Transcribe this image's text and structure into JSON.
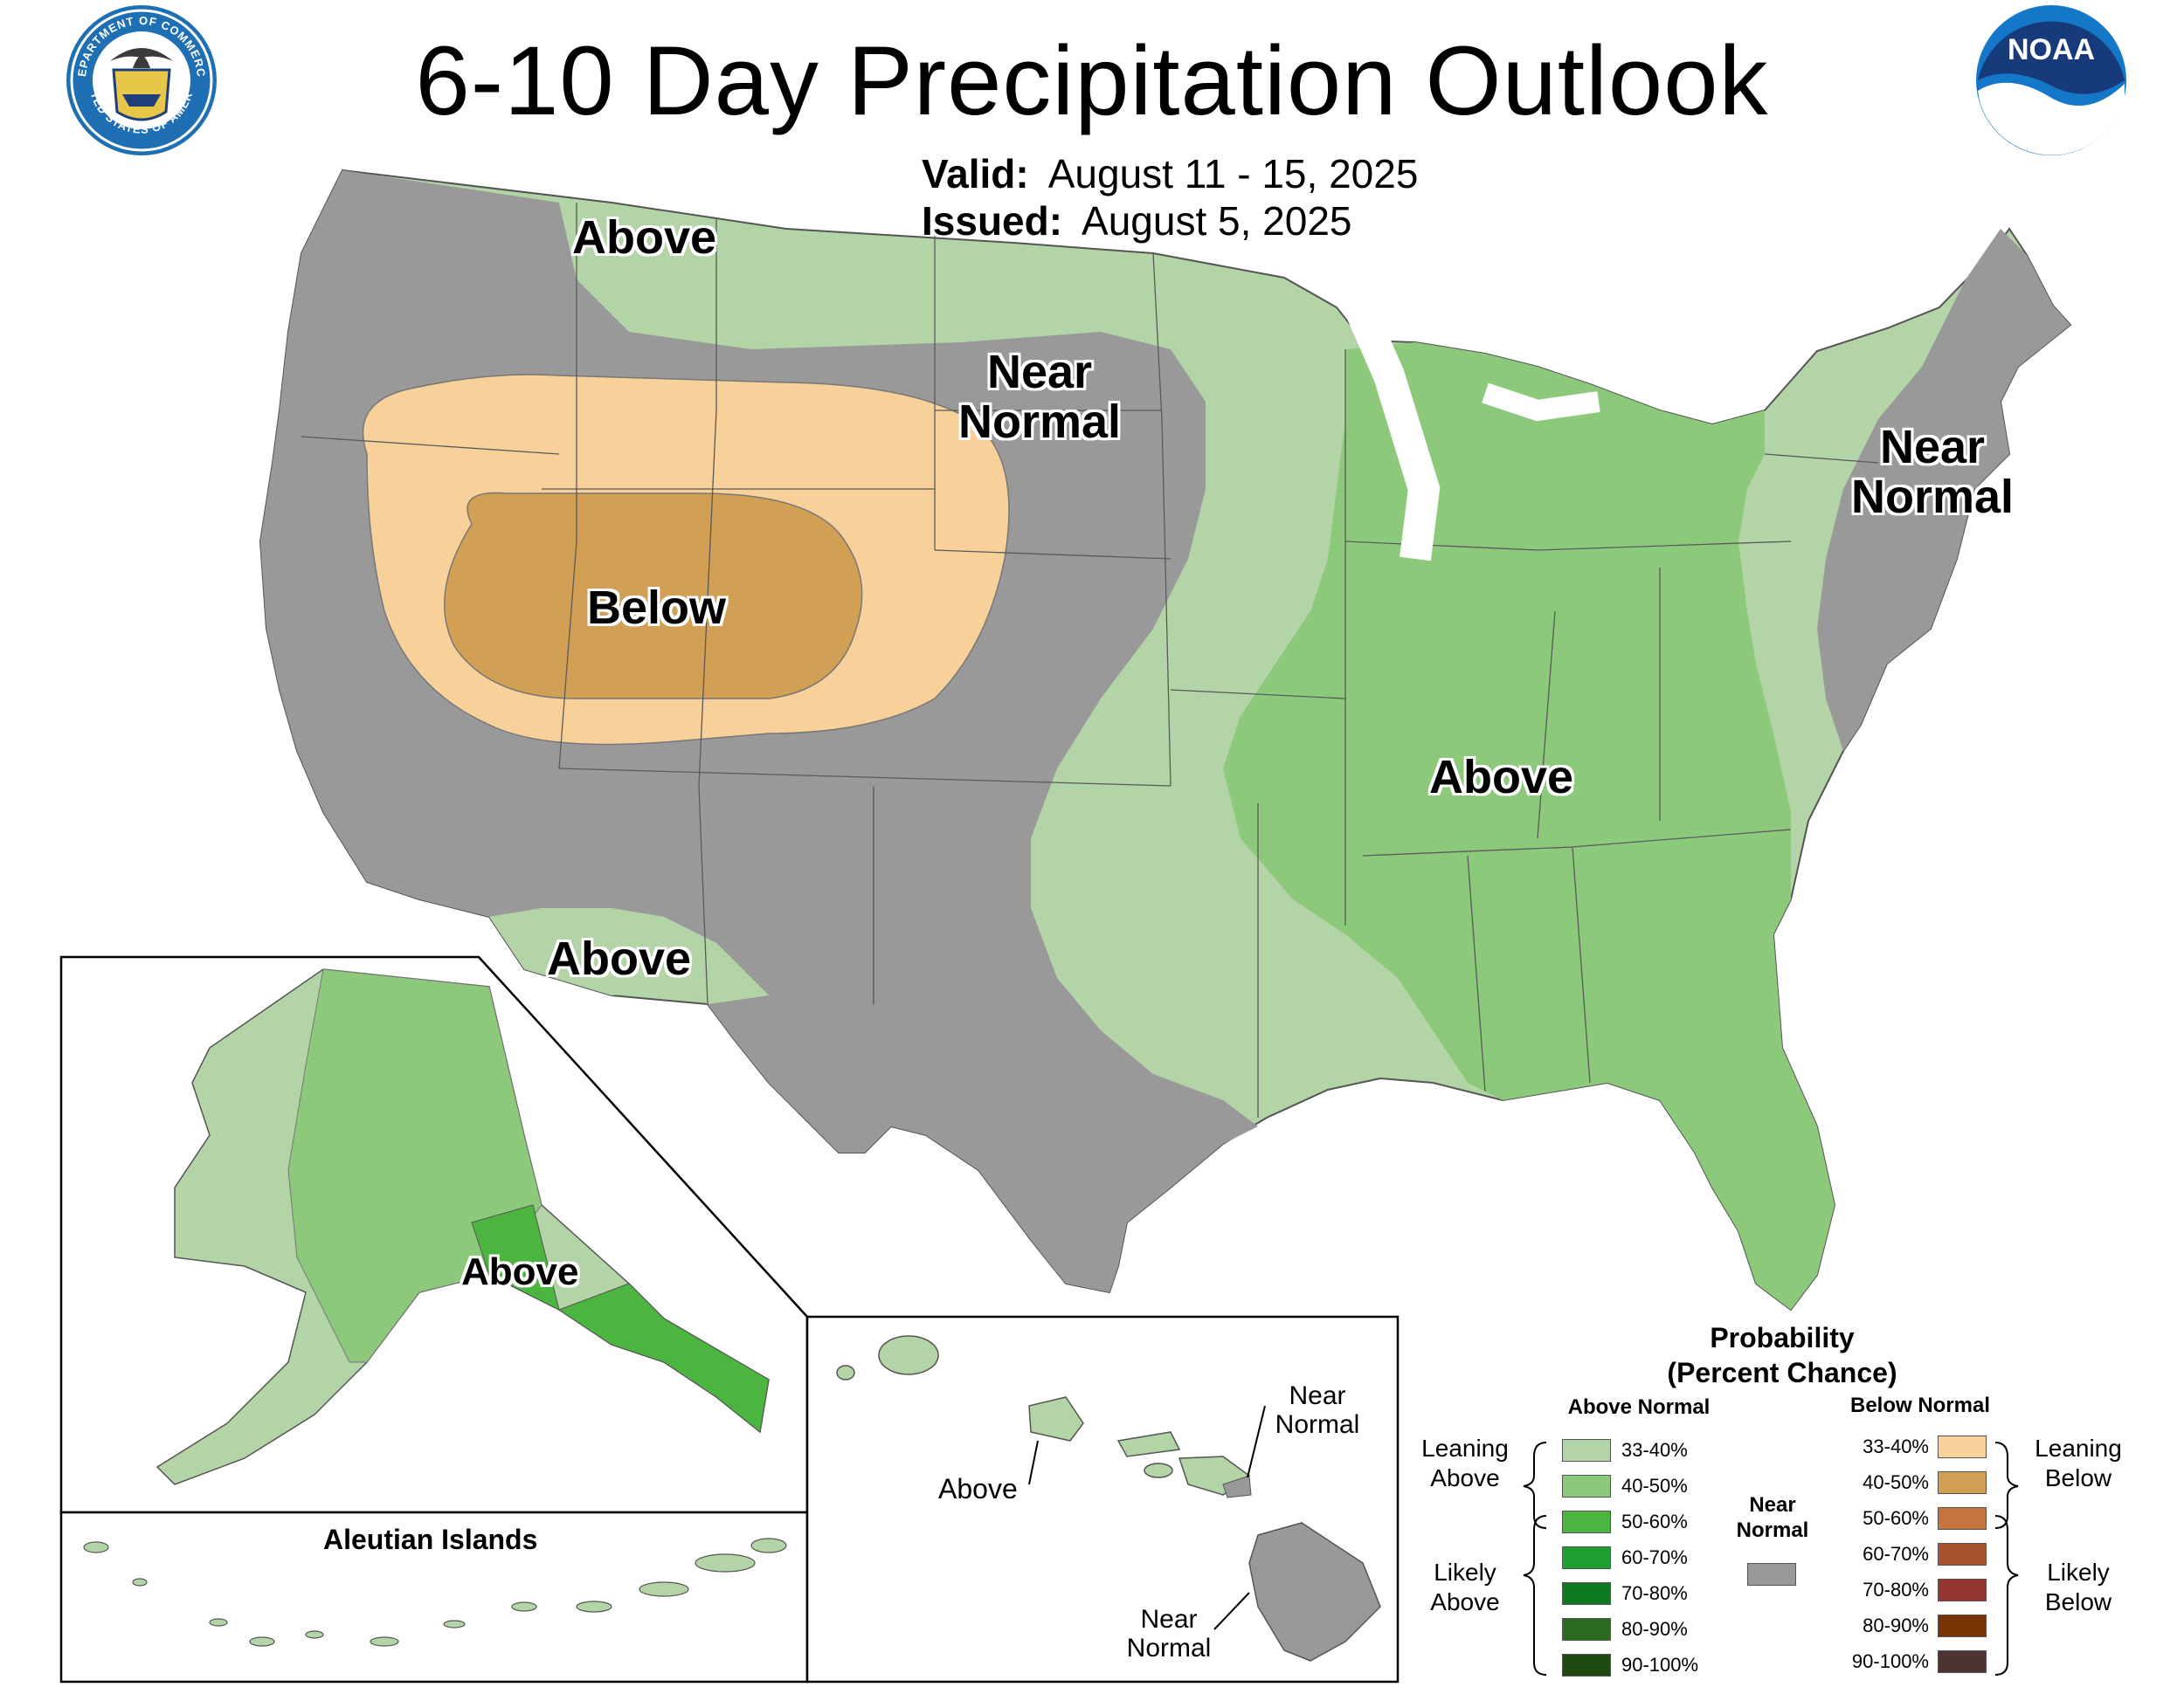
{
  "title": "6-10 Day Precipitation Outlook",
  "valid": {
    "label": "Valid:",
    "value": "August 11 - 15, 2025"
  },
  "issued": {
    "label": "Issued:",
    "value": "August 5, 2025"
  },
  "colors": {
    "above_33_40": "#b3d4a6",
    "above_40_50": "#8cc97a",
    "above_50_60": "#4cb53f",
    "above_60_70": "#1f9e33",
    "above_70_80": "#0d7a1f",
    "above_80_90": "#2b6a1e",
    "above_90_100": "#1e4a10",
    "near_normal": "#999999",
    "below_33_40": "#f8d19a",
    "below_40_50": "#d1a055",
    "below_50_60": "#c7733e",
    "below_60_70": "#a7542e",
    "below_70_80": "#94362f",
    "below_80_90": "#7a3305",
    "below_90_100": "#4d3332"
  },
  "map_labels": {
    "conus_above_north": "Above",
    "conus_near_normal_north": "Near Normal",
    "conus_below": "Below",
    "conus_above_east": "Above",
    "conus_near_normal_northeast": "Near Normal",
    "conus_above_southwest": "Above",
    "alaska_above": "Above",
    "aleutian_title": "Aleutian Islands",
    "hawaii_near_normal_east": "Near Normal",
    "hawaii_above": "Above",
    "hawaii_near_normal_bigisland": "Near Normal"
  },
  "legend": {
    "title_line1": "Probability",
    "title_line2": "(Percent Chance)",
    "above_header": "Above Normal",
    "below_header": "Below Normal",
    "near_normal": "Near Normal",
    "leaning_above": "Leaning Above",
    "likely_above": "Likely Above",
    "leaning_below": "Leaning Below",
    "likely_below": "Likely Below",
    "above_rows": [
      "33-40%",
      "40-50%",
      "50-60%",
      "60-70%",
      "70-80%",
      "80-90%",
      "90-100%"
    ],
    "below_rows": [
      "33-40%",
      "40-50%",
      "50-60%",
      "60-70%",
      "70-80%",
      "80-90%",
      "90-100%"
    ]
  },
  "logos": {
    "left": "DEPARTMENT OF COMMERCE · UNITED STATES OF AMERICA",
    "right": "NOAA"
  }
}
